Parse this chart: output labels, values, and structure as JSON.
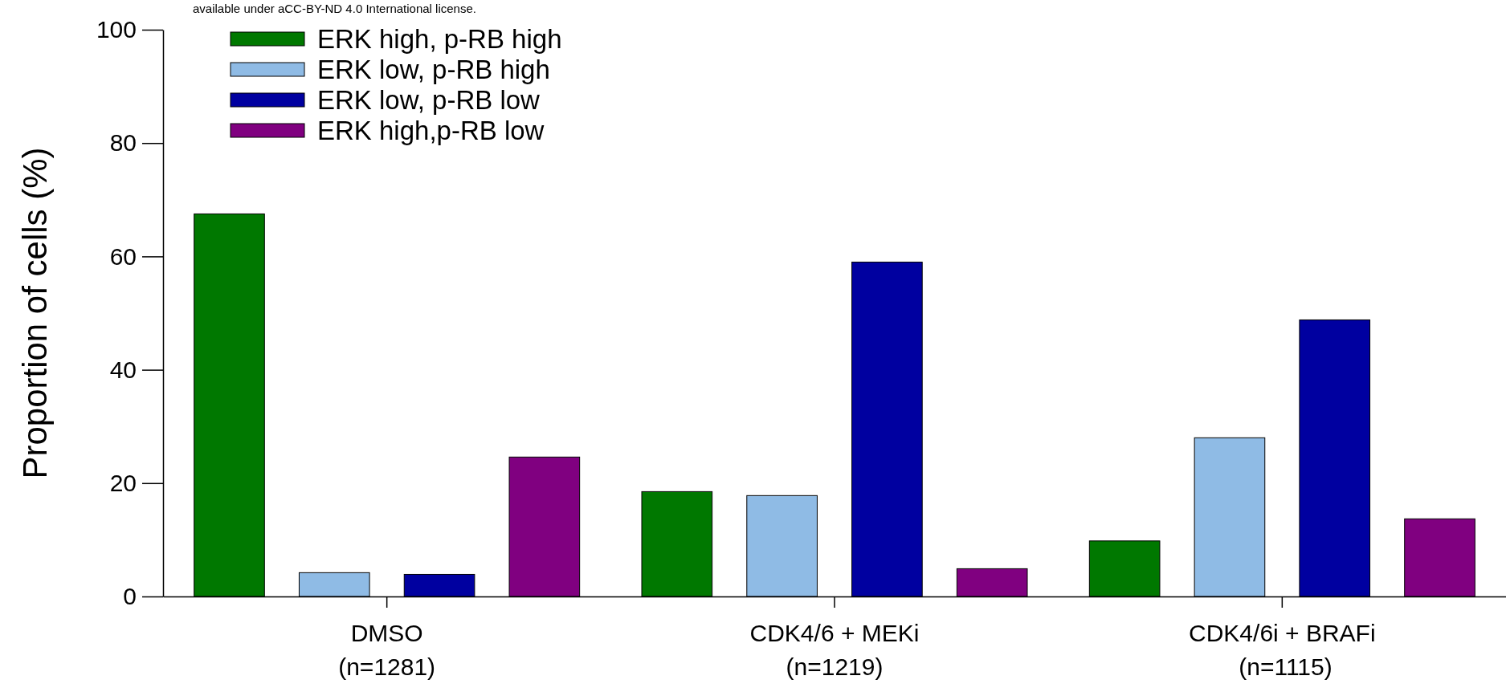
{
  "chart_data": {
    "type": "bar",
    "ylabel": "Proportion of cells (%)",
    "categories": [
      "DMSO\n(n=1281)",
      "CDK4/6 + MEKi\n(n=1219)",
      "CDK4/6i + BRAFi\n (n=1115)"
    ],
    "series": [
      {
        "name": "ERK high, p-RB high",
        "color": "#007800",
        "values": [
          67.5,
          18.5,
          9.8
        ]
      },
      {
        "name": "ERK low, p-RB high",
        "color": "#8fbbe5",
        "values": [
          4.2,
          17.8,
          28.0
        ]
      },
      {
        "name": "ERK low, p-RB low",
        "color": "#0000a0",
        "values": [
          3.9,
          59.0,
          48.8
        ]
      },
      {
        "name": "ERK high,p-RB low",
        "color": "#800080",
        "values": [
          24.6,
          4.9,
          13.7
        ]
      }
    ],
    "ylim": [
      0,
      100
    ],
    "yticks": [
      0,
      20,
      40,
      60,
      80,
      100
    ],
    "grid": false,
    "legend": "top left",
    "annotations": [
      "available under aCC-BY-ND 4.0 International license."
    ]
  }
}
